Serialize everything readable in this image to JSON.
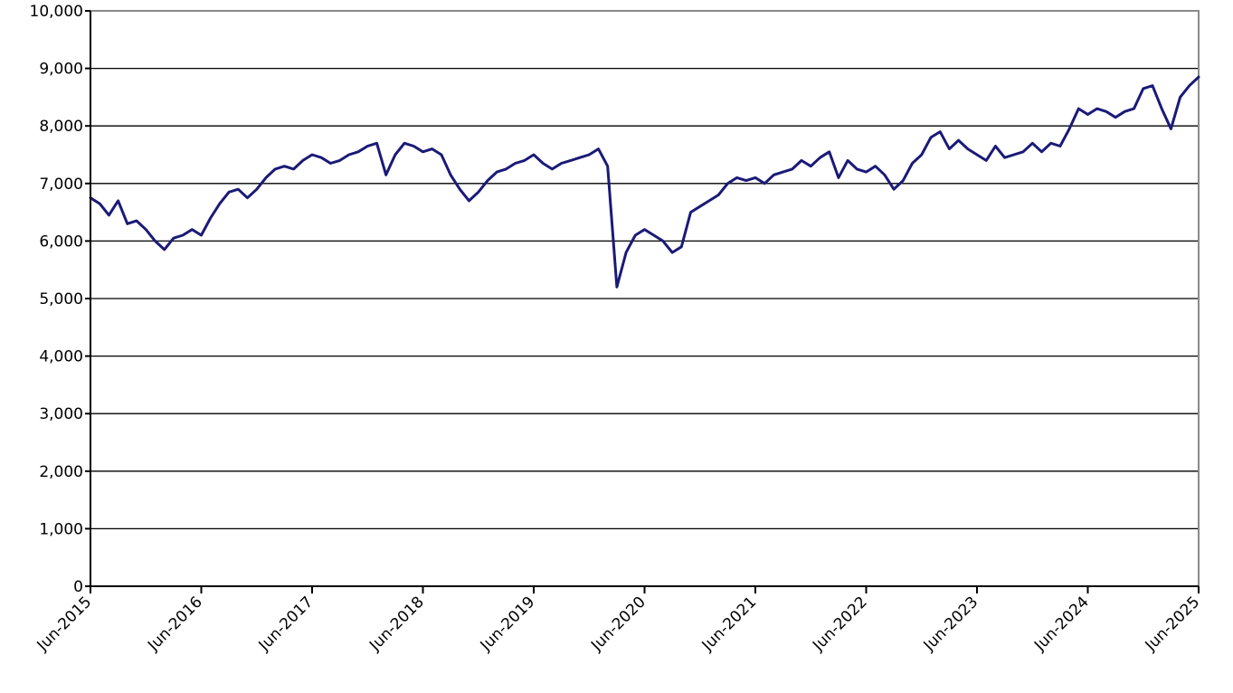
{
  "chart_data": {
    "type": "line",
    "title": "",
    "xlabel": "",
    "ylabel": "",
    "ylim": [
      0,
      10000
    ],
    "y_ticks": [
      0,
      1000,
      2000,
      3000,
      4000,
      5000,
      6000,
      7000,
      8000,
      9000,
      10000
    ],
    "y_tick_labels": [
      "0",
      "1,000",
      "2,000",
      "3,000",
      "4,000",
      "5,000",
      "6,000",
      "7,000",
      "8,000",
      "9,000",
      "10,000"
    ],
    "x_tick_labels": [
      "Jun-2015",
      "Jun-2016",
      "Jun-2017",
      "Jun-2018",
      "Jun-2019",
      "Jun-2020",
      "Jun-2021",
      "Jun-2022",
      "Jun-2023",
      "Jun-2024",
      "Jun-2025"
    ],
    "xlim": [
      "2015-06",
      "2025-06"
    ],
    "grid": "horizontal",
    "line_color": "#1a1a78",
    "series": [
      {
        "x": [
          "2015-06",
          "2015-07",
          "2015-08",
          "2015-09",
          "2015-10",
          "2015-11",
          "2015-12",
          "2016-01",
          "2016-02",
          "2016-03",
          "2016-04",
          "2016-05",
          "2016-06",
          "2016-07",
          "2016-08",
          "2016-09",
          "2016-10",
          "2016-11",
          "2016-12",
          "2017-01",
          "2017-02",
          "2017-03",
          "2017-04",
          "2017-05",
          "2017-06",
          "2017-07",
          "2017-08",
          "2017-09",
          "2017-10",
          "2017-11",
          "2017-12",
          "2018-01",
          "2018-02",
          "2018-03",
          "2018-04",
          "2018-05",
          "2018-06",
          "2018-07",
          "2018-08",
          "2018-09",
          "2018-10",
          "2018-11",
          "2018-12",
          "2019-01",
          "2019-02",
          "2019-03",
          "2019-04",
          "2019-05",
          "2019-06",
          "2019-07",
          "2019-08",
          "2019-09",
          "2019-10",
          "2019-11",
          "2019-12",
          "2020-01",
          "2020-02",
          "2020-03",
          "2020-04",
          "2020-05",
          "2020-06",
          "2020-07",
          "2020-08",
          "2020-09",
          "2020-10",
          "2020-11",
          "2020-12",
          "2021-01",
          "2021-02",
          "2021-03",
          "2021-04",
          "2021-05",
          "2021-06",
          "2021-07",
          "2021-08",
          "2021-09",
          "2021-10",
          "2021-11",
          "2021-12",
          "2022-01",
          "2022-02",
          "2022-03",
          "2022-04",
          "2022-05",
          "2022-06",
          "2022-07",
          "2022-08",
          "2022-09",
          "2022-10",
          "2022-11",
          "2022-12",
          "2023-01",
          "2023-02",
          "2023-03",
          "2023-04",
          "2023-05",
          "2023-06",
          "2023-07",
          "2023-08",
          "2023-09",
          "2023-10",
          "2023-11",
          "2023-12",
          "2024-01",
          "2024-02",
          "2024-03",
          "2024-04",
          "2024-05",
          "2024-06",
          "2024-07",
          "2024-08",
          "2024-09",
          "2024-10",
          "2024-11",
          "2024-12",
          "2025-01",
          "2025-02",
          "2025-03",
          "2025-04",
          "2025-05",
          "2025-06"
        ],
        "values": [
          6750,
          6650,
          6450,
          6700,
          6300,
          6350,
          6200,
          6000,
          5850,
          6050,
          6100,
          6200,
          6100,
          6400,
          6650,
          6850,
          6900,
          6750,
          6900,
          7100,
          7250,
          7300,
          7250,
          7400,
          7500,
          7450,
          7350,
          7400,
          7500,
          7550,
          7650,
          7700,
          7150,
          7500,
          7700,
          7650,
          7550,
          7600,
          7500,
          7150,
          6900,
          6700,
          6850,
          7050,
          7200,
          7250,
          7350,
          7400,
          7500,
          7350,
          7250,
          7350,
          7400,
          7450,
          7500,
          7600,
          7300,
          5200,
          5800,
          6100,
          6200,
          6100,
          6000,
          5800,
          5900,
          6500,
          6600,
          6700,
          6800,
          7000,
          7100,
          7050,
          7100,
          7000,
          7150,
          7200,
          7250,
          7400,
          7300,
          7450,
          7550,
          7100,
          7400,
          7250,
          7200,
          7300,
          7150,
          6900,
          7050,
          7350,
          7500,
          7800,
          7900,
          7600,
          7750,
          7600,
          7500,
          7400,
          7650,
          7450,
          7500,
          7550,
          7700,
          7550,
          7700,
          7650,
          7950,
          8300,
          8200,
          8300,
          8250,
          8150,
          8250,
          8300,
          8650,
          8700,
          8300,
          7950,
          8500,
          8700,
          8850
        ]
      }
    ]
  }
}
